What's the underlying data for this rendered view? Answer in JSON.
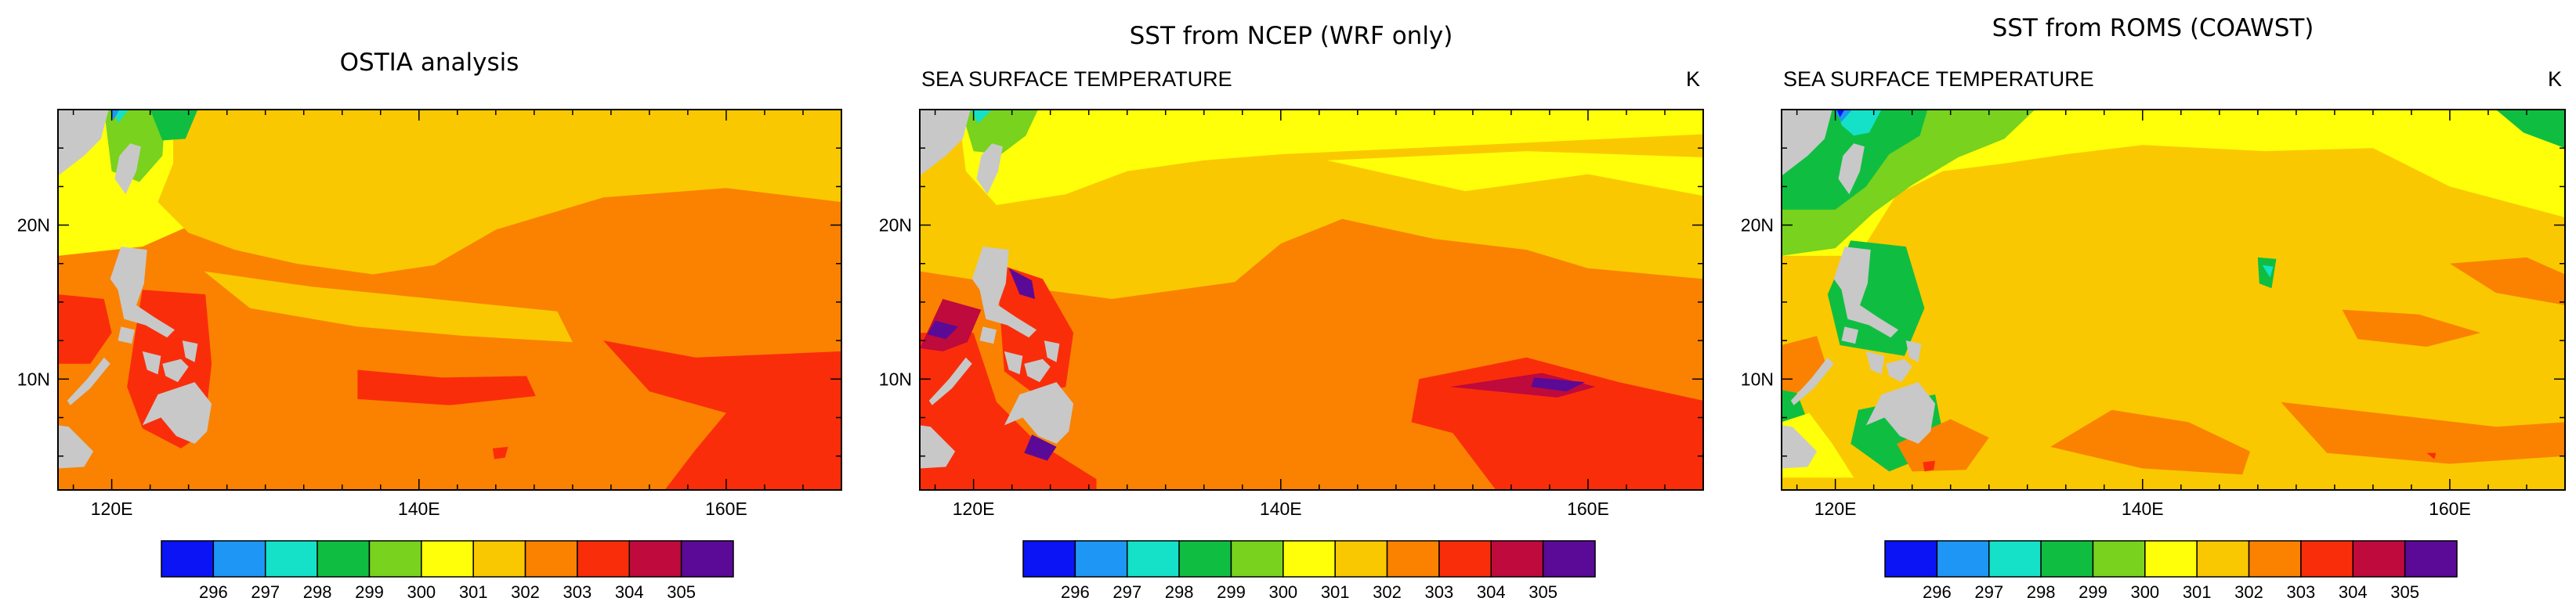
{
  "colorbar": {
    "colors": [
      "#0a14f5",
      "#1e96f5",
      "#14e1c8",
      "#0fbe41",
      "#78d21e",
      "#ffff0a",
      "#fac800",
      "#fa8200",
      "#fa2d0a",
      "#be0a3c",
      "#5a0a96"
    ],
    "labels": [
      "296",
      "297",
      "298",
      "299",
      "300",
      "301",
      "302",
      "303",
      "304",
      "305"
    ]
  },
  "axes": {
    "x_labels": [
      "120E",
      "140E",
      "160E"
    ],
    "y_labels": [
      "20N",
      "10N"
    ]
  },
  "land_color": "#c8c8c8",
  "panels": [
    {
      "title": "OSTIA analysis",
      "varname": "",
      "unit": "",
      "style": "ostia"
    },
    {
      "title": "SST from NCEP (WRF only)",
      "varname": "SEA SURFACE TEMPERATURE",
      "unit": "K",
      "style": "ncep"
    },
    {
      "title": "SST from ROMS (COAWST)",
      "varname": "SEA SURFACE TEMPERATURE",
      "unit": "K",
      "style": "roms"
    }
  ]
}
